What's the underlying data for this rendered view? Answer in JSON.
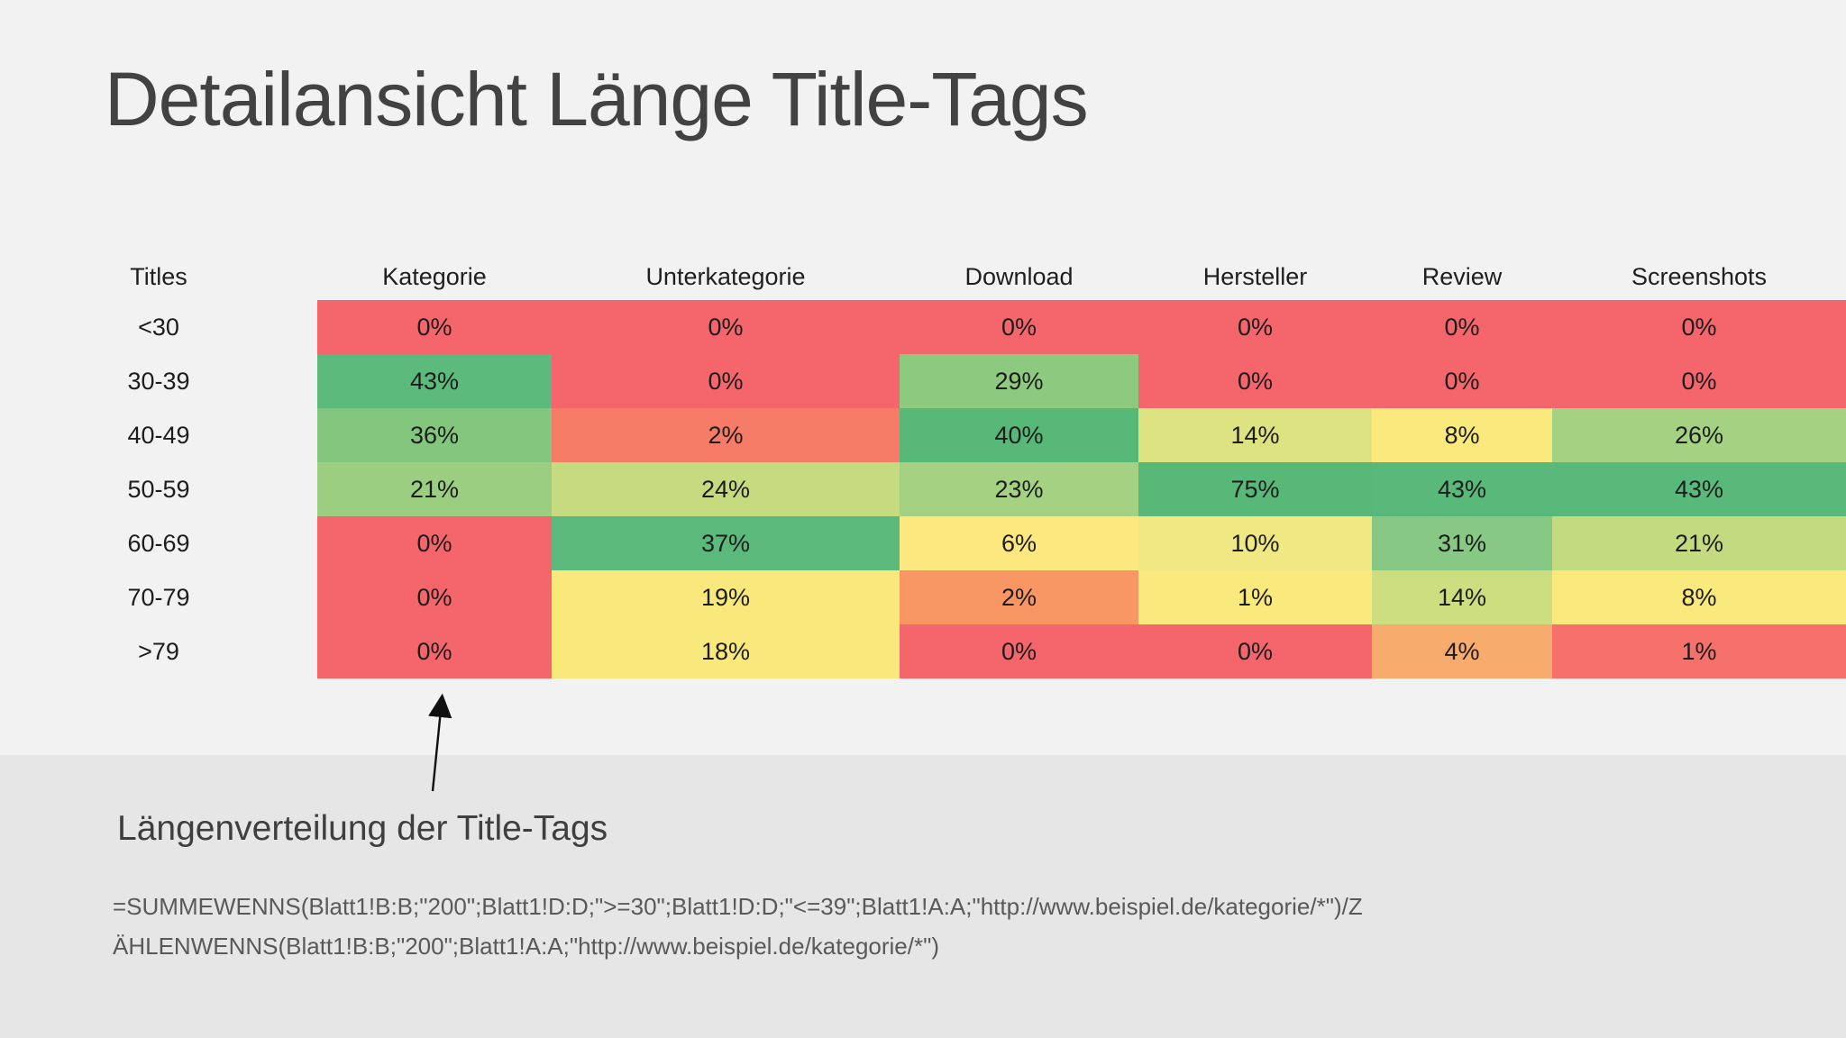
{
  "slide": {
    "title": "Detailansicht Länge Title-Tags",
    "background_color": "#F3F2F2",
    "footer_band_color": "#E7E6E6",
    "title_color": "#424242"
  },
  "annotation": {
    "heading": "Längenverteilung der Title-Tags",
    "formula_line1": "=SUMMEWENNS(Blatt1!B:B;\"200\";Blatt1!D:D;\">=30\";Blatt1!D:D;\"<=39\";Blatt1!A:A;\"http://www.beispiel.de/kategorie/*\")/Z",
    "formula_line2": "ÄHLENWENNS(Blatt1!B:B;\"200\";Blatt1!A:A;\"http://www.beispiel.de/kategorie/*\")"
  },
  "chart_data": {
    "type": "heatmap",
    "title": "Detailansicht Länge Title-Tags",
    "row_header_label": "Titles",
    "columns": [
      "Kategorie",
      "Unterkategorie",
      "Download",
      "Hersteller",
      "Review",
      "Screenshots"
    ],
    "rows": [
      "<30",
      "30-39",
      "40-49",
      "50-59",
      "60-69",
      "70-79",
      ">79"
    ],
    "values_percent": [
      [
        0,
        0,
        0,
        0,
        0,
        0
      ],
      [
        43,
        0,
        29,
        0,
        0,
        0
      ],
      [
        36,
        2,
        40,
        14,
        8,
        26
      ],
      [
        21,
        24,
        23,
        75,
        43,
        43
      ],
      [
        0,
        37,
        6,
        10,
        31,
        21
      ],
      [
        0,
        19,
        2,
        1,
        14,
        8
      ],
      [
        0,
        18,
        0,
        0,
        4,
        1
      ]
    ],
    "cell_colors": [
      [
        "#F4656C",
        "#F4656C",
        "#F4656C",
        "#F4656C",
        "#F4656C",
        "#F4656C"
      ],
      [
        "#5DBA7D",
        "#F4656C",
        "#8DC97E",
        "#F4656C",
        "#F4656C",
        "#F4656C"
      ],
      [
        "#83C67E",
        "#F77C67",
        "#57B878",
        "#DEE381",
        "#FAE97D",
        "#A5D282"
      ],
      [
        "#9CCE81",
        "#C6DB7F",
        "#A4D282",
        "#57B878",
        "#58B97A",
        "#58B97A"
      ],
      [
        "#F4656C",
        "#5BB97B",
        "#FCE87E",
        "#F0E983",
        "#86C884",
        "#C4DA80"
      ],
      [
        "#F4656C",
        "#F9E97D",
        "#F89664",
        "#FAE97D",
        "#CDDE80",
        "#FAE97D"
      ],
      [
        "#F4656C",
        "#F9E97D",
        "#F4656C",
        "#F4656C",
        "#F7AC6E",
        "#F6716C"
      ]
    ],
    "color_scale": {
      "min_color": "#F4656C",
      "mid_color": "#FCE87E",
      "max_color": "#57B878"
    },
    "legend_position": "none",
    "grid": false
  }
}
